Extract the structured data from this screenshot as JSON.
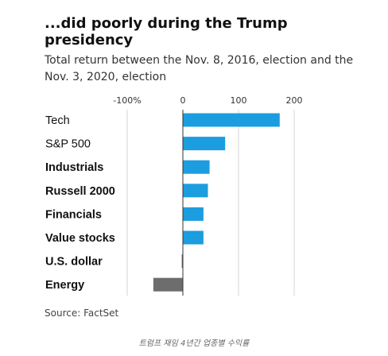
{
  "title": "...did poorly during the Trump presidency",
  "subtitle": "Total return between the Nov. 8, 2016, election and the Nov. 3, 2020, election",
  "source": "Source: FactSet",
  "caption": "트럼프 재임 4년간 업종별 수익률",
  "colors": {
    "positive": "#1b9ddf",
    "negative": "#6d6d6d",
    "grid": "#d5d5d5",
    "zero_line": "#333333"
  },
  "chart_data": {
    "type": "bar",
    "orientation": "horizontal",
    "categories": [
      "Tech",
      "S&P 500",
      "Industrials",
      "Russell 2000",
      "Financials",
      "Value stocks",
      "U.S. dollar",
      "Energy"
    ],
    "bold_categories": [
      "Industrials",
      "Russell 2000",
      "Financials",
      "Value stocks",
      "U.S. dollar",
      "Energy"
    ],
    "values": [
      174,
      76,
      48,
      45,
      37,
      37,
      -2,
      -53
    ],
    "xlim": [
      -100,
      200
    ],
    "ticks": [
      -100,
      0,
      100,
      200
    ],
    "tick_labels": [
      "-100%",
      "0",
      "100",
      "200"
    ],
    "grid": true
  }
}
